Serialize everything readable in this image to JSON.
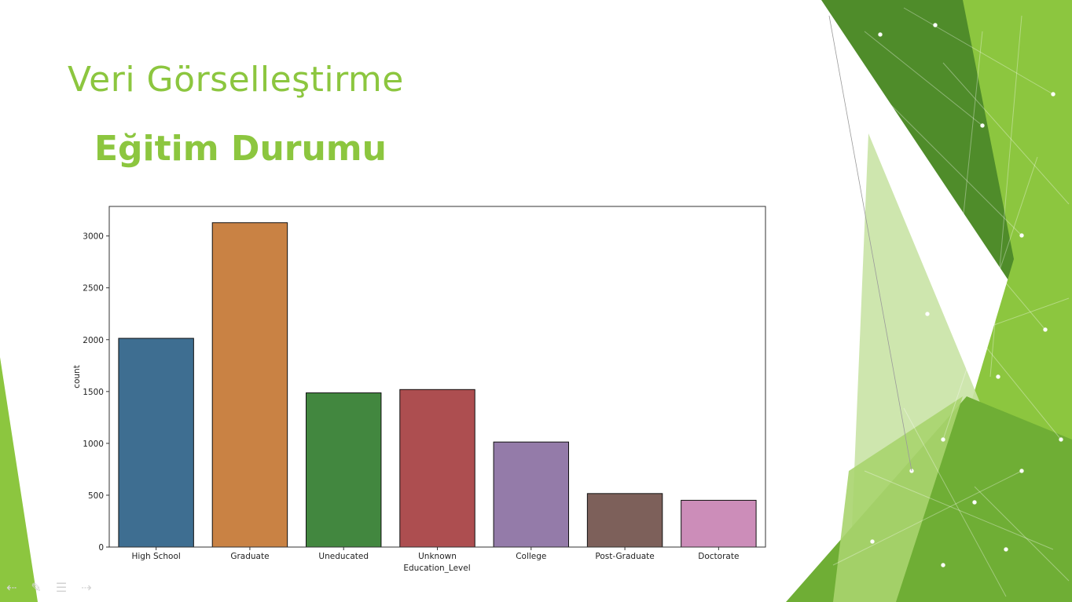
{
  "slide": {
    "title": "Veri Görselleştirme",
    "subtitle": "Eğitim Durumu"
  },
  "theme": {
    "accent": "#8cc63f",
    "dark_green": "#4f8c2a",
    "mid_green": "#7fb83a",
    "light_green": "#c9e3a5"
  },
  "chart_data": {
    "type": "bar",
    "categories": [
      "High School",
      "Graduate",
      "Uneducated",
      "Unknown",
      "College",
      "Post-Graduate",
      "Doctorate"
    ],
    "values": [
      2013,
      3128,
      1487,
      1519,
      1013,
      516,
      451
    ],
    "colors": [
      "#3e6e91",
      "#c98244",
      "#42873f",
      "#ad4e50",
      "#947ba9",
      "#7d605a",
      "#cc8db9"
    ],
    "xlabel": "Education_Level",
    "ylabel": "count",
    "yticks": [
      0,
      500,
      1000,
      1500,
      2000,
      2500,
      3000
    ],
    "ylim": [
      0,
      3285
    ],
    "grid": false
  },
  "nav": {
    "icons": [
      "arrow-left-icon",
      "pen-icon",
      "menu-icon",
      "arrow-right-icon"
    ]
  }
}
